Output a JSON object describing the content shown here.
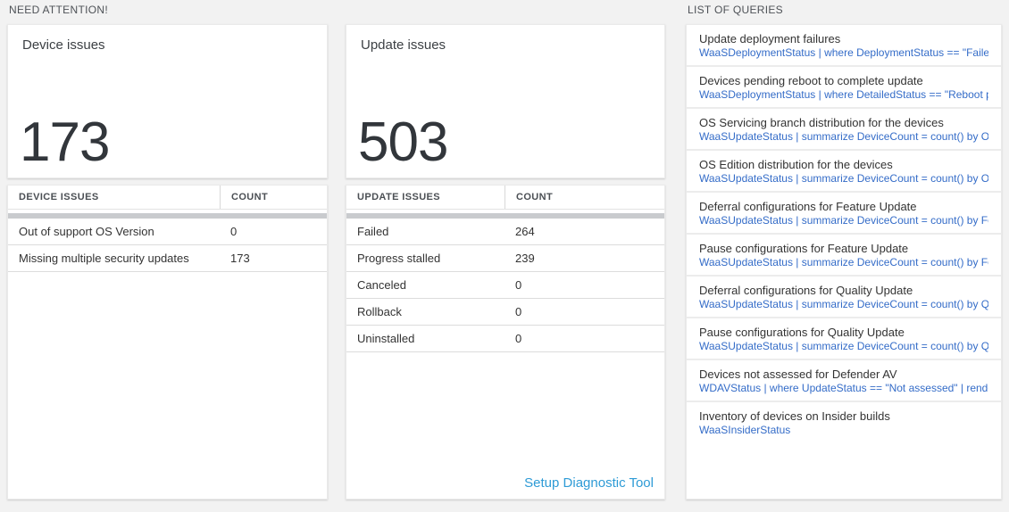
{
  "colors": {
    "page_background": "#f2f2f2",
    "tile_background": "#ffffff",
    "query_link_blue": "#346cc8",
    "setup_link_blue": "#2e9bd6",
    "big_number_color": "#32363b",
    "scrollbar_gray": "#c9cbce"
  },
  "sections": {
    "need_attention_label": "NEED ATTENTION!",
    "queries_label": "LIST OF QUERIES"
  },
  "device_tile": {
    "title": "Device issues",
    "count": "173"
  },
  "device_table": {
    "headers": [
      "DEVICE ISSUES",
      "COUNT"
    ],
    "rows": [
      {
        "label": "Out of support OS Version",
        "count": "0"
      },
      {
        "label": "Missing multiple security updates",
        "count": "173"
      }
    ]
  },
  "update_tile": {
    "title": "Update issues",
    "count": "503"
  },
  "update_table": {
    "headers": [
      "UPDATE ISSUES",
      "COUNT"
    ],
    "rows": [
      {
        "label": "Failed",
        "count": "264"
      },
      {
        "label": "Progress stalled",
        "count": "239"
      },
      {
        "label": "Canceled",
        "count": "0"
      },
      {
        "label": "Rollback",
        "count": "0"
      },
      {
        "label": "Uninstalled",
        "count": "0"
      }
    ],
    "link_label": "Setup Diagnostic Tool"
  },
  "queries": {
    "items": [
      {
        "title": "Update deployment failures",
        "code": "WaaSDeploymentStatus | where DeploymentStatus == \"Failed\" |..."
      },
      {
        "title": "Devices pending reboot to complete update",
        "code": "WaaSDeploymentStatus | where DetailedStatus == \"Reboot pend..."
      },
      {
        "title": "OS Servicing branch distribution for the devices",
        "code": "WaaSUpdateStatus | summarize DeviceCount = count() by OSSer..."
      },
      {
        "title": "OS Edition distribution for the devices",
        "code": "WaaSUpdateStatus | summarize DeviceCount = count() by OSEdit..."
      },
      {
        "title": "Deferral configurations for Feature Update",
        "code": "WaaSUpdateStatus | summarize DeviceCount = count() by Featur..."
      },
      {
        "title": "Pause configurations for Feature Update",
        "code": "WaaSUpdateStatus | summarize DeviceCount = count() by Featur..."
      },
      {
        "title": "Deferral configurations for Quality Update",
        "code": "WaaSUpdateStatus | summarize DeviceCount = count() by Qualit..."
      },
      {
        "title": "Pause configurations for Quality Update",
        "code": "WaaSUpdateStatus | summarize DeviceCount = count() by Qualit..."
      },
      {
        "title": "Devices not assessed for Defender AV",
        "code": "WDAVStatus | where UpdateStatus == \"Not assessed\" | render ta..."
      },
      {
        "title": "Inventory of devices on Insider builds",
        "code": "WaaSInsiderStatus"
      }
    ]
  }
}
